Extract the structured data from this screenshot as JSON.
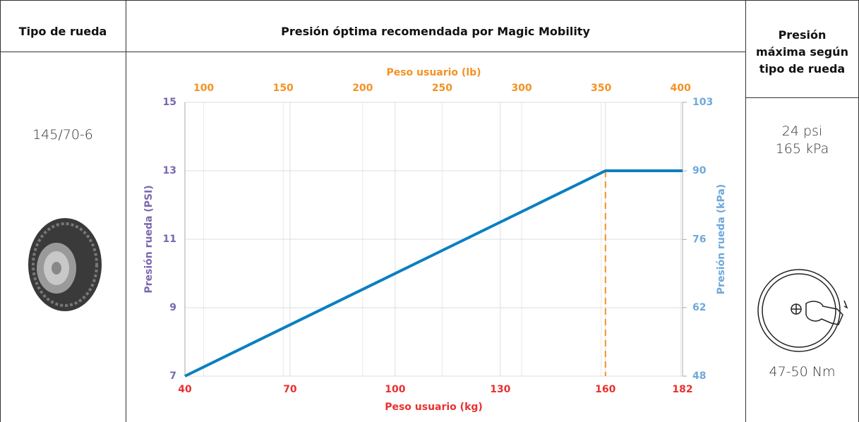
{
  "table": {
    "headers": [
      "Tipo de rueda",
      "Presión óptima recomendada por Magic Mobility",
      "Presión máxima según tipo de rueda"
    ],
    "wheel_type": "145/70-6",
    "max_pressure": [
      "24 psi",
      "165 kPa"
    ],
    "torque": "47-50 Nm"
  },
  "chart_data": {
    "type": "line",
    "xlabel": "Peso usuario (kg)",
    "x2label": "Peso usuario (lb)",
    "ylabel": "Presión rueda (PSI)",
    "y2label": "Presión rueda (kPa)",
    "x": [
      40,
      160,
      182
    ],
    "values": [
      7,
      13,
      13
    ],
    "color": "#0a7fc1",
    "xlim": [
      40,
      182
    ],
    "xticks": [
      40,
      70,
      100,
      130,
      160,
      182
    ],
    "x2lim": [
      88.2,
      401.2
    ],
    "x2ticks": [
      100,
      150,
      200,
      250,
      300,
      350,
      400
    ],
    "ylim": [
      7,
      15
    ],
    "yticks": [
      7,
      9,
      11,
      13,
      15
    ],
    "y2lim": [
      48.3,
      103.4
    ],
    "y2ticks": [
      {
        "value": 48.3,
        "label": "48"
      },
      {
        "value": 62.1,
        "label": "62"
      },
      {
        "value": 75.8,
        "label": "76"
      },
      {
        "value": 89.6,
        "label": "90"
      },
      {
        "value": 103.4,
        "label": "103"
      }
    ],
    "axis_colors": {
      "x": "#e8312f",
      "x2": "#f39224",
      "y": "#7b68b0",
      "y2": "#6fa8dc"
    },
    "vline": {
      "x": 160,
      "color": "#f39224"
    },
    "grid": true
  }
}
